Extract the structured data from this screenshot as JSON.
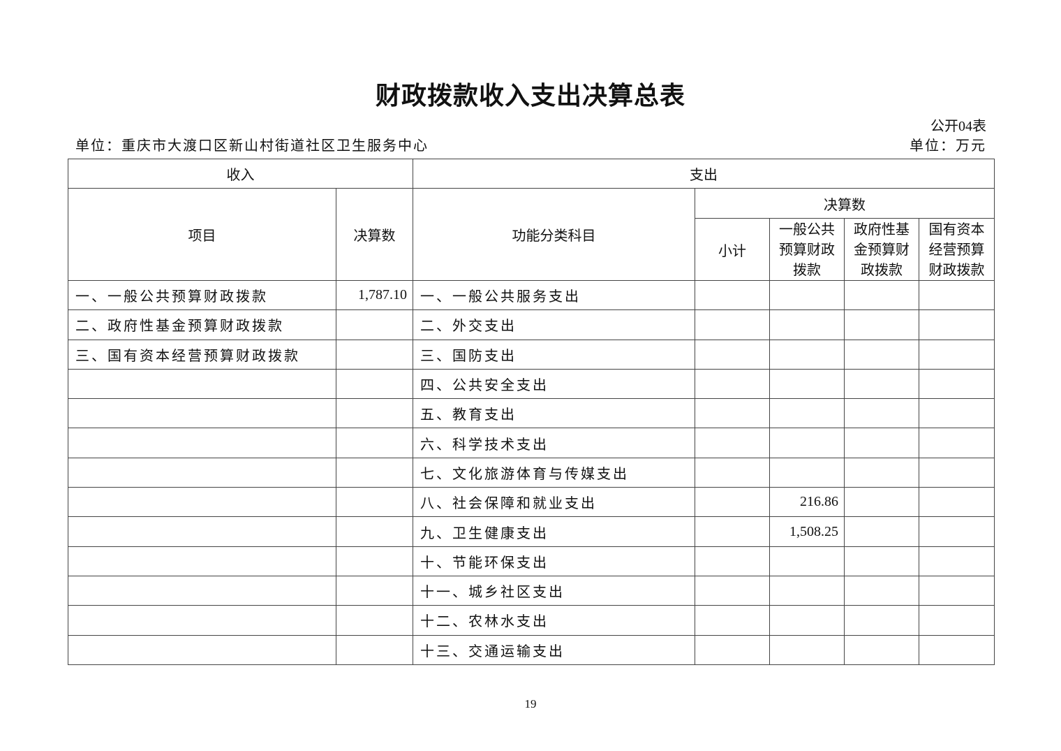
{
  "title": "财政拨款收入支出决算总表",
  "form_no": "公开04表",
  "unit_org": "单位：重庆市大渡口区新山村街道社区卫生服务中心",
  "unit_currency": "单位：万元",
  "headers": {
    "income": "收入",
    "expense": "支出",
    "item": "项目",
    "income_amount": "决算数",
    "function_category": "功能分类科目",
    "expense_amount": "决算数",
    "subtotal": "小计",
    "general": "一般公共预算财政拨款",
    "fund": "政府性基金预算财政拨款",
    "state_capital": "国有资本经营预算财政拨款"
  },
  "rows": [
    {
      "income_item": "一、一般公共预算财政拨款",
      "income_amount": "1,787.10",
      "expense_item": "一、一般公共服务支出",
      "subtotal": "",
      "general": "",
      "fund": "",
      "state_capital": ""
    },
    {
      "income_item": "二、政府性基金预算财政拨款",
      "income_amount": "",
      "expense_item": "二、外交支出",
      "subtotal": "",
      "general": "",
      "fund": "",
      "state_capital": ""
    },
    {
      "income_item": "三、国有资本经营预算财政拨款",
      "income_amount": "",
      "expense_item": "三、国防支出",
      "subtotal": "",
      "general": "",
      "fund": "",
      "state_capital": ""
    },
    {
      "income_item": "",
      "income_amount": "",
      "expense_item": "四、公共安全支出",
      "subtotal": "",
      "general": "",
      "fund": "",
      "state_capital": ""
    },
    {
      "income_item": "",
      "income_amount": "",
      "expense_item": "五、教育支出",
      "subtotal": "",
      "general": "",
      "fund": "",
      "state_capital": ""
    },
    {
      "income_item": "",
      "income_amount": "",
      "expense_item": "六、科学技术支出",
      "subtotal": "",
      "general": "",
      "fund": "",
      "state_capital": ""
    },
    {
      "income_item": "",
      "income_amount": "",
      "expense_item": "七、文化旅游体育与传媒支出",
      "subtotal": "",
      "general": "",
      "fund": "",
      "state_capital": ""
    },
    {
      "income_item": "",
      "income_amount": "",
      "expense_item": "八、社会保障和就业支出",
      "subtotal": "",
      "general": "216.86",
      "fund": "",
      "state_capital": ""
    },
    {
      "income_item": "",
      "income_amount": "",
      "expense_item": "九、卫生健康支出",
      "subtotal": "",
      "general": "1,508.25",
      "fund": "",
      "state_capital": ""
    },
    {
      "income_item": "",
      "income_amount": "",
      "expense_item": "十、节能环保支出",
      "subtotal": "",
      "general": "",
      "fund": "",
      "state_capital": ""
    },
    {
      "income_item": "",
      "income_amount": "",
      "expense_item": "十一、城乡社区支出",
      "subtotal": "",
      "general": "",
      "fund": "",
      "state_capital": ""
    },
    {
      "income_item": "",
      "income_amount": "",
      "expense_item": "十二、农林水支出",
      "subtotal": "",
      "general": "",
      "fund": "",
      "state_capital": ""
    },
    {
      "income_item": "",
      "income_amount": "",
      "expense_item": "十三、交通运输支出",
      "subtotal": "",
      "general": "",
      "fund": "",
      "state_capital": ""
    }
  ],
  "page_number": "19"
}
